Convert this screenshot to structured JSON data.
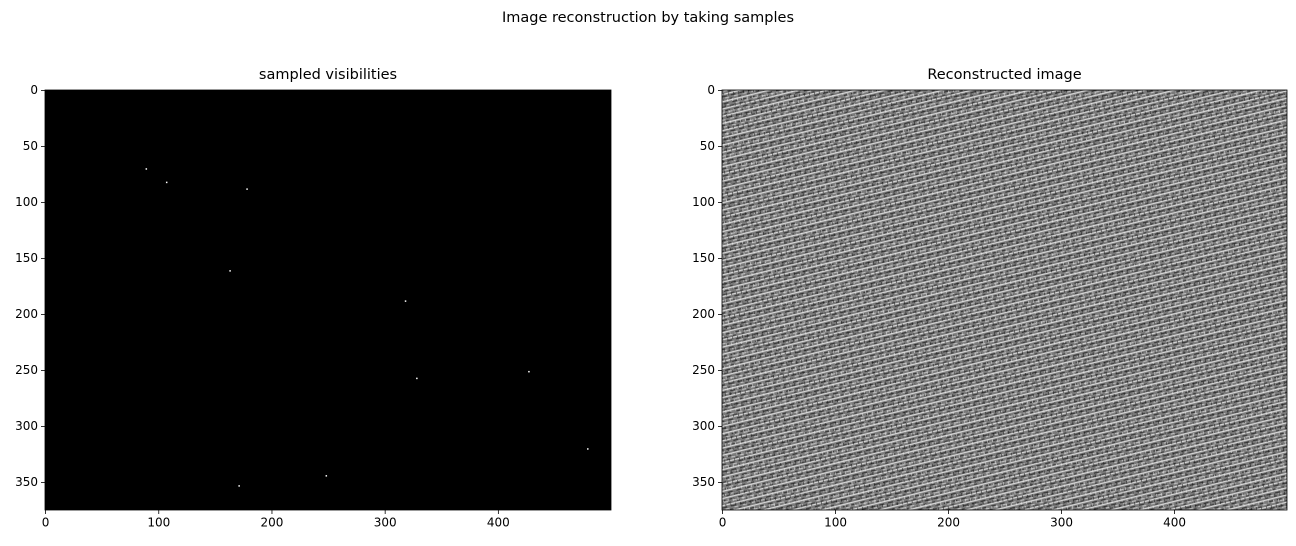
{
  "title": "Image reconstruction by taking samples",
  "chart_data": [
    {
      "type": "scatter",
      "title": "sampled visibilities",
      "x": [
        89,
        107,
        178,
        163,
        318,
        427,
        328,
        479,
        248,
        171
      ],
      "y": [
        70,
        82,
        88,
        161,
        188,
        251,
        257,
        320,
        344,
        353
      ],
      "color": "#ffffff",
      "background": "#000000",
      "xlim": [
        -0.5,
        499.5
      ],
      "ylim": [
        374.5,
        -0.5
      ],
      "xticks": [
        0,
        100,
        200,
        300,
        400
      ],
      "yticks": [
        0,
        50,
        100,
        150,
        200,
        250,
        300,
        350
      ]
    },
    {
      "type": "image",
      "title": "Reconstructed image",
      "xlim": [
        -0.5,
        499.5
      ],
      "ylim": [
        374.5,
        -0.5
      ],
      "xticks": [
        0,
        100,
        200,
        300,
        400
      ],
      "yticks": [
        0,
        50,
        100,
        150,
        200,
        250,
        300,
        350
      ]
    }
  ]
}
